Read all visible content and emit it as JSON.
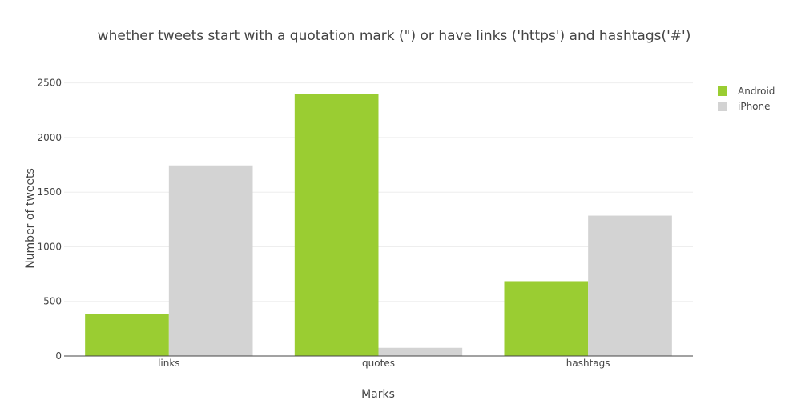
{
  "chart_data": {
    "type": "bar",
    "title": "whether tweets start with a quotation mark (\") or have links ('https') and hashtags('#')",
    "xlabel": "Marks",
    "ylabel": "Number of tweets",
    "categories": [
      "links",
      "quotes",
      "hashtags"
    ],
    "series": [
      {
        "name": "Android",
        "color": "#9acd32",
        "values": [
          385,
          2400,
          685
        ]
      },
      {
        "name": "iPhone",
        "color": "#d3d3d3",
        "values": [
          1745,
          75,
          1285
        ]
      }
    ],
    "ylim": [
      0,
      2600
    ],
    "yticks": [
      0,
      500,
      1000,
      1500,
      2000,
      2500
    ],
    "grid": true,
    "legend_position": "top-right"
  }
}
